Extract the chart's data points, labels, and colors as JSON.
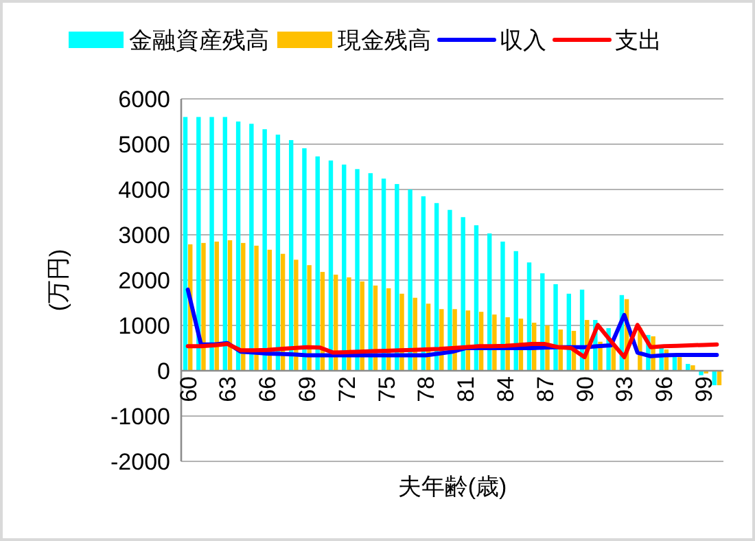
{
  "chart_data": {
    "type": "bar",
    "xlabel": "夫年齢(歳)",
    "ylabel": "(万円)",
    "categories": [
      "60",
      null,
      null,
      "63",
      null,
      null,
      "66",
      null,
      null,
      "69",
      null,
      null,
      "72",
      null,
      null,
      "75",
      null,
      null,
      "78",
      null,
      null,
      "81",
      null,
      null,
      "84",
      null,
      null,
      "87",
      null,
      null,
      "90",
      null,
      null,
      "93",
      null,
      null,
      "96",
      null,
      null,
      "99",
      null
    ],
    "series": [
      {
        "name": "金融資産残高",
        "color": "#00ffff",
        "values": [
          5600,
          5600,
          5600,
          5600,
          5500,
          5450,
          5330,
          5210,
          5090,
          4910,
          4730,
          4640,
          4550,
          4450,
          4360,
          4240,
          4120,
          4000,
          3850,
          3700,
          3550,
          3390,
          3210,
          3030,
          2850,
          2640,
          2390,
          2150,
          1910,
          1700,
          1790,
          1120,
          940,
          1670,
          null,
          790,
          520,
          350,
          150,
          -100,
          -320
        ]
      },
      {
        "name": "現金残高",
        "color": "#ffc000",
        "values": [
          2790,
          2820,
          2850,
          2880,
          2820,
          2760,
          2670,
          2580,
          2450,
          2330,
          2180,
          2120,
          2060,
          1970,
          1880,
          1820,
          1700,
          1610,
          1480,
          1360,
          1360,
          1330,
          1300,
          1240,
          1180,
          1150,
          1060,
          1000,
          910,
          880,
          1120,
          640,
          600,
          1580,
          950,
          760,
          470,
          300,
          120,
          -60,
          -320
        ]
      },
      {
        "name": "収入",
        "color": "#0000ff",
        "type": "line",
        "values": [
          1790,
          580,
          580,
          610,
          420,
          400,
          380,
          370,
          360,
          340,
          340,
          340,
          340,
          340,
          340,
          340,
          340,
          340,
          340,
          380,
          420,
          500,
          500,
          500,
          500,
          500,
          500,
          510,
          520,
          520,
          520,
          540,
          560,
          1230,
          400,
          320,
          340,
          350,
          350,
          350,
          350
        ]
      },
      {
        "name": "支出",
        "color": "#ff0000",
        "type": "line",
        "values": [
          540,
          540,
          560,
          590,
          450,
          450,
          460,
          480,
          500,
          520,
          510,
          400,
          410,
          420,
          430,
          440,
          450,
          460,
          470,
          480,
          500,
          520,
          540,
          540,
          550,
          570,
          590,
          590,
          520,
          500,
          300,
          1010,
          650,
          300,
          1010,
          520,
          540,
          550,
          560,
          570,
          580
        ]
      }
    ],
    "ylim": [
      -2000,
      6000
    ],
    "yticks": [
      -2000,
      -1000,
      0,
      1000,
      2000,
      3000,
      4000,
      5000,
      6000
    ],
    "grid": "y",
    "legend": "top"
  }
}
